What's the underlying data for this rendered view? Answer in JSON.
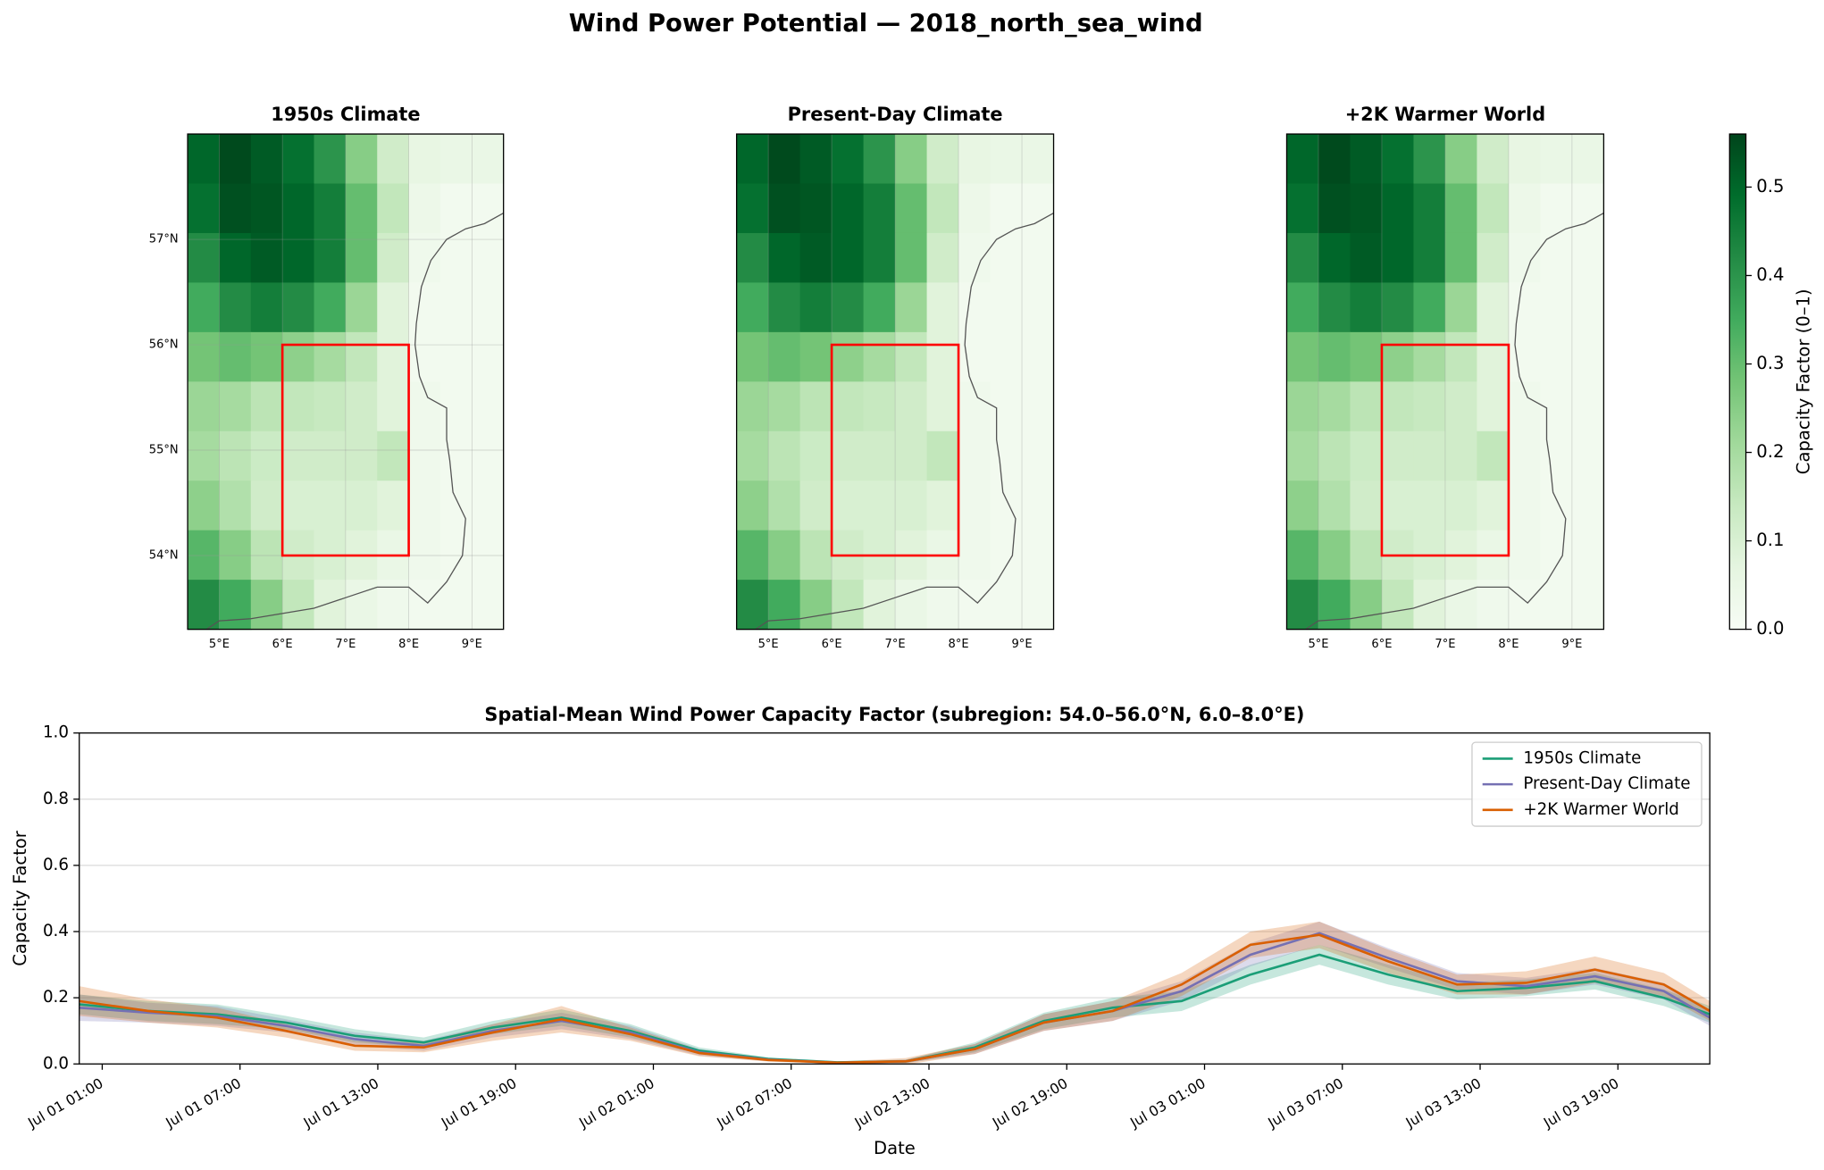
{
  "title": "Wind Power Potential — 2018_north_sea_wind",
  "colorbar": {
    "label": "Capacity Factor (0–1)",
    "lim": [
      0,
      0.56
    ],
    "ticks": [
      {
        "value": 0,
        "label": "0.0"
      },
      0.1,
      0.2,
      0.3,
      0.4,
      0.5
    ],
    "colormap": [
      "#f7fcf5",
      "#e5f5e0",
      "#c7e9c0",
      "#a1d99b",
      "#74c476",
      "#41ab5d",
      "#238b45",
      "#006d2c",
      "#00441b"
    ]
  },
  "chart_data": [
    {
      "type": "heatmap",
      "title": "1950s Climate",
      "xlim": [
        4.5,
        9.5
      ],
      "ylim": [
        53.3,
        58.0
      ],
      "xticks": [
        {
          "value": 5,
          "label": "5°E"
        },
        {
          "value": 6,
          "label": "6°E"
        },
        {
          "value": 7,
          "label": "7°E"
        },
        {
          "value": 8,
          "label": "8°E"
        },
        {
          "value": 9,
          "label": "9°E"
        }
      ],
      "yticks": [
        {
          "value": 54,
          "label": "54°N"
        },
        {
          "value": 55,
          "label": "55°N"
        },
        {
          "value": 56,
          "label": "56°N"
        },
        {
          "value": 57,
          "label": "57°N"
        }
      ],
      "region": {
        "xlim": [
          6,
          8
        ],
        "ylim": [
          54,
          56
        ],
        "color": "#ff0000"
      },
      "values": [
        [
          0.5,
          0.55,
          0.52,
          0.48,
          0.4,
          0.25,
          0.12,
          0.06,
          0.05,
          0.05
        ],
        [
          0.48,
          0.54,
          0.53,
          0.5,
          0.45,
          0.3,
          0.15,
          0.04,
          0.02,
          0.02
        ],
        [
          0.42,
          0.5,
          0.52,
          0.5,
          0.45,
          0.3,
          0.12,
          0.03,
          0.02,
          0.02
        ],
        [
          0.35,
          0.42,
          0.45,
          0.42,
          0.35,
          0.22,
          0.08,
          0.02,
          0.02,
          0.02
        ],
        [
          0.28,
          0.3,
          0.28,
          0.24,
          0.2,
          0.15,
          0.08,
          0.02,
          0.02,
          0.02
        ],
        [
          0.22,
          0.2,
          0.16,
          0.15,
          0.14,
          0.12,
          0.08,
          0.03,
          0.02,
          0.02
        ],
        [
          0.2,
          0.16,
          0.13,
          0.12,
          0.12,
          0.12,
          0.15,
          0.03,
          0.02,
          0.02
        ],
        [
          0.24,
          0.18,
          0.12,
          0.1,
          0.1,
          0.1,
          0.08,
          0.03,
          0.02,
          0.02
        ],
        [
          0.32,
          0.25,
          0.16,
          0.12,
          0.1,
          0.08,
          0.05,
          0.03,
          0.02,
          0.02
        ],
        [
          0.42,
          0.35,
          0.25,
          0.15,
          0.08,
          0.05,
          0.03,
          0.02,
          0.02,
          0.02
        ]
      ]
    },
    {
      "type": "heatmap",
      "title": "Present-Day Climate",
      "xlim": [
        4.5,
        9.5
      ],
      "ylim": [
        53.3,
        58.0
      ],
      "xticks": [
        {
          "value": 5,
          "label": "5°E"
        },
        {
          "value": 6,
          "label": "6°E"
        },
        {
          "value": 7,
          "label": "7°E"
        },
        {
          "value": 8,
          "label": "8°E"
        },
        {
          "value": 9,
          "label": "9°E"
        }
      ],
      "region": {
        "xlim": [
          6,
          8
        ],
        "ylim": [
          54,
          56
        ],
        "color": "#ff0000"
      },
      "values": [
        [
          0.5,
          0.55,
          0.52,
          0.48,
          0.4,
          0.25,
          0.12,
          0.06,
          0.05,
          0.05
        ],
        [
          0.48,
          0.54,
          0.53,
          0.5,
          0.45,
          0.3,
          0.15,
          0.04,
          0.02,
          0.02
        ],
        [
          0.42,
          0.5,
          0.52,
          0.5,
          0.45,
          0.3,
          0.12,
          0.03,
          0.02,
          0.02
        ],
        [
          0.35,
          0.42,
          0.45,
          0.42,
          0.35,
          0.22,
          0.08,
          0.02,
          0.02,
          0.02
        ],
        [
          0.28,
          0.3,
          0.28,
          0.24,
          0.2,
          0.15,
          0.08,
          0.02,
          0.02,
          0.02
        ],
        [
          0.22,
          0.2,
          0.16,
          0.15,
          0.14,
          0.12,
          0.08,
          0.03,
          0.02,
          0.02
        ],
        [
          0.2,
          0.16,
          0.13,
          0.12,
          0.12,
          0.12,
          0.15,
          0.03,
          0.02,
          0.02
        ],
        [
          0.24,
          0.18,
          0.12,
          0.1,
          0.1,
          0.1,
          0.08,
          0.03,
          0.02,
          0.02
        ],
        [
          0.32,
          0.25,
          0.16,
          0.12,
          0.1,
          0.08,
          0.05,
          0.03,
          0.02,
          0.02
        ],
        [
          0.42,
          0.35,
          0.25,
          0.15,
          0.08,
          0.05,
          0.03,
          0.02,
          0.02,
          0.02
        ]
      ]
    },
    {
      "type": "heatmap",
      "title": "+2K Warmer World",
      "xlim": [
        4.5,
        9.5
      ],
      "ylim": [
        53.3,
        58.0
      ],
      "xticks": [
        {
          "value": 5,
          "label": "5°E"
        },
        {
          "value": 6,
          "label": "6°E"
        },
        {
          "value": 7,
          "label": "7°E"
        },
        {
          "value": 8,
          "label": "8°E"
        },
        {
          "value": 9,
          "label": "9°E"
        }
      ],
      "region": {
        "xlim": [
          6,
          8
        ],
        "ylim": [
          54,
          56
        ],
        "color": "#ff0000"
      },
      "values": [
        [
          0.5,
          0.55,
          0.52,
          0.48,
          0.4,
          0.25,
          0.12,
          0.06,
          0.05,
          0.05
        ],
        [
          0.48,
          0.54,
          0.53,
          0.5,
          0.45,
          0.3,
          0.15,
          0.04,
          0.02,
          0.02
        ],
        [
          0.42,
          0.5,
          0.52,
          0.5,
          0.45,
          0.3,
          0.12,
          0.03,
          0.02,
          0.02
        ],
        [
          0.35,
          0.42,
          0.45,
          0.42,
          0.35,
          0.22,
          0.08,
          0.02,
          0.02,
          0.02
        ],
        [
          0.28,
          0.3,
          0.28,
          0.24,
          0.2,
          0.15,
          0.08,
          0.02,
          0.02,
          0.02
        ],
        [
          0.22,
          0.2,
          0.16,
          0.15,
          0.14,
          0.12,
          0.08,
          0.03,
          0.02,
          0.02
        ],
        [
          0.2,
          0.16,
          0.13,
          0.12,
          0.12,
          0.12,
          0.15,
          0.03,
          0.02,
          0.02
        ],
        [
          0.24,
          0.18,
          0.12,
          0.1,
          0.1,
          0.1,
          0.08,
          0.03,
          0.02,
          0.02
        ],
        [
          0.32,
          0.25,
          0.16,
          0.12,
          0.1,
          0.08,
          0.05,
          0.03,
          0.02,
          0.02
        ],
        [
          0.42,
          0.35,
          0.25,
          0.15,
          0.08,
          0.05,
          0.03,
          0.02,
          0.02,
          0.02
        ]
      ]
    },
    {
      "type": "line",
      "title": "Spatial-Mean Wind Power Capacity Factor (subregion: 54.0–56.0°N, 6.0–8.0°E)",
      "xlabel": "Date",
      "ylabel": "Capacity Factor",
      "x": [
        "Jul 01 00:00",
        "Jul 01 03:00",
        "Jul 01 06:00",
        "Jul 01 09:00",
        "Jul 01 12:00",
        "Jul 01 15:00",
        "Jul 01 18:00",
        "Jul 01 21:00",
        "Jul 02 00:00",
        "Jul 02 03:00",
        "Jul 02 06:00",
        "Jul 02 09:00",
        "Jul 02 12:00",
        "Jul 02 15:00",
        "Jul 02 18:00",
        "Jul 02 21:00",
        "Jul 03 00:00",
        "Jul 03 03:00",
        "Jul 03 06:00",
        "Jul 03 09:00",
        "Jul 03 12:00",
        "Jul 03 15:00",
        "Jul 03 18:00",
        "Jul 03 21:00",
        "Jul 03 23:00"
      ],
      "xlim": [
        "Jul 01 00:00",
        "Jul 03 23:00"
      ],
      "xticks": [
        "Jul 01 01:00",
        "Jul 01 07:00",
        "Jul 01 13:00",
        "Jul 01 19:00",
        "Jul 02 01:00",
        "Jul 02 07:00",
        "Jul 02 13:00",
        "Jul 02 19:00",
        "Jul 03 01:00",
        "Jul 03 07:00",
        "Jul 03 13:00",
        "Jul 03 19:00"
      ],
      "ylim": [
        0,
        1
      ],
      "yticks": [
        {
          "value": 0,
          "label": "0.0"
        },
        0.2,
        0.4,
        0.6,
        0.8,
        {
          "value": 1,
          "label": "1.0"
        }
      ],
      "grid": true,
      "legend": "upper right",
      "series": [
        {
          "name": "1950s Climate",
          "color": "#1b9e77",
          "values": [
            0.18,
            0.16,
            0.15,
            0.125,
            0.085,
            0.065,
            0.11,
            0.14,
            0.1,
            0.04,
            0.015,
            0.005,
            0.008,
            0.05,
            0.13,
            0.17,
            0.19,
            0.27,
            0.33,
            0.27,
            0.22,
            0.23,
            0.25,
            0.2,
            0.15
          ],
          "errors": [
            0.03,
            0.03,
            0.03,
            0.02,
            0.02,
            0.015,
            0.02,
            0.025,
            0.02,
            0.01,
            0.005,
            0.003,
            0.005,
            0.015,
            0.025,
            0.03,
            0.03,
            0.03,
            0.03,
            0.03,
            0.025,
            0.025,
            0.025,
            0.025,
            0.025
          ]
        },
        {
          "name": "Present-Day Climate",
          "color": "#7570b3",
          "values": [
            0.17,
            0.155,
            0.145,
            0.115,
            0.075,
            0.055,
            0.1,
            0.13,
            0.095,
            0.035,
            0.013,
            0.004,
            0.008,
            0.045,
            0.125,
            0.16,
            0.22,
            0.33,
            0.395,
            0.32,
            0.25,
            0.235,
            0.265,
            0.22,
            0.14
          ],
          "errors": [
            0.04,
            0.03,
            0.03,
            0.02,
            0.02,
            0.015,
            0.02,
            0.025,
            0.02,
            0.01,
            0.005,
            0.003,
            0.005,
            0.015,
            0.025,
            0.03,
            0.03,
            0.035,
            0.035,
            0.03,
            0.025,
            0.025,
            0.025,
            0.025,
            0.025
          ]
        },
        {
          "name": "+2K Warmer World",
          "color": "#d95f02",
          "values": [
            0.19,
            0.16,
            0.14,
            0.1,
            0.055,
            0.05,
            0.095,
            0.135,
            0.09,
            0.033,
            0.012,
            0.004,
            0.008,
            0.045,
            0.125,
            0.16,
            0.24,
            0.36,
            0.39,
            0.31,
            0.24,
            0.245,
            0.285,
            0.24,
            0.16
          ],
          "errors": [
            0.045,
            0.035,
            0.03,
            0.02,
            0.015,
            0.015,
            0.025,
            0.04,
            0.02,
            0.01,
            0.005,
            0.003,
            0.01,
            0.015,
            0.025,
            0.03,
            0.035,
            0.04,
            0.04,
            0.035,
            0.03,
            0.035,
            0.04,
            0.035,
            0.03
          ]
        }
      ]
    }
  ]
}
